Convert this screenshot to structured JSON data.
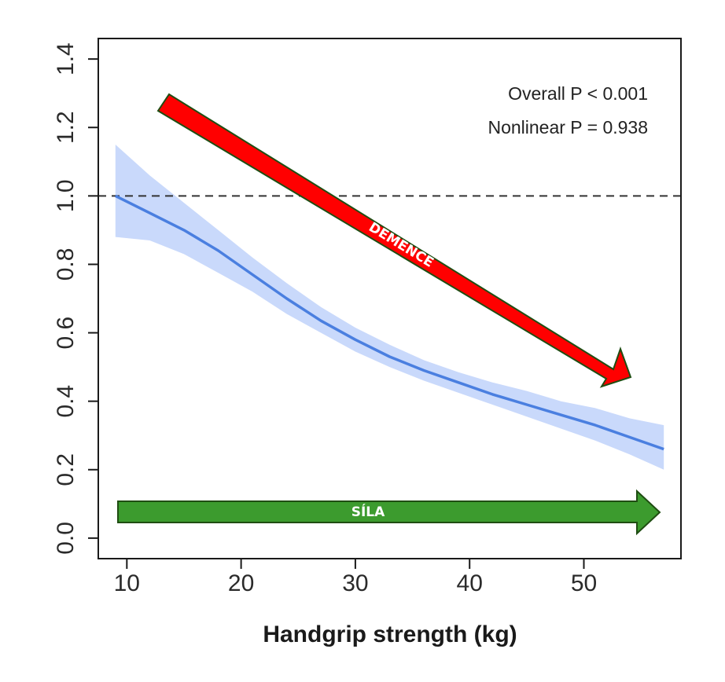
{
  "chart_data": {
    "type": "line",
    "title": "",
    "xlabel": "Handgrip strength (kg)",
    "ylabel": "",
    "xlim": [
      7.5,
      58.5
    ],
    "ylim": [
      -0.06,
      1.46
    ],
    "xticks": [
      10,
      20,
      30,
      40,
      50
    ],
    "xtick_labels": [
      "10",
      "20",
      "30",
      "40",
      "50"
    ],
    "yticks": [
      0.0,
      0.2,
      0.4,
      0.6,
      0.8,
      1.0,
      1.2,
      1.4
    ],
    "ytick_labels": [
      "0.0",
      "0.2",
      "0.4",
      "0.6",
      "0.8",
      "1.0",
      "1.2",
      "1.4"
    ],
    "reference_line": {
      "y": 1.0,
      "style": "dashed",
      "color": "#333333"
    },
    "series": [
      {
        "x": [
          9,
          12,
          15,
          18,
          21,
          24,
          27,
          30,
          33,
          36,
          39,
          42,
          45,
          48,
          51,
          54,
          57
        ],
        "y": [
          1.0,
          0.95,
          0.9,
          0.84,
          0.77,
          0.7,
          0.635,
          0.58,
          0.53,
          0.49,
          0.455,
          0.42,
          0.39,
          0.36,
          0.33,
          0.295,
          0.26
        ],
        "lower": [
          0.88,
          0.87,
          0.83,
          0.775,
          0.72,
          0.655,
          0.6,
          0.545,
          0.5,
          0.46,
          0.425,
          0.39,
          0.355,
          0.32,
          0.285,
          0.245,
          0.2
        ],
        "upper": [
          1.15,
          1.06,
          0.98,
          0.9,
          0.82,
          0.745,
          0.675,
          0.615,
          0.565,
          0.52,
          0.485,
          0.455,
          0.43,
          0.4,
          0.38,
          0.35,
          0.33
        ],
        "color": "#4a7fe0",
        "band_color": "#c9d9fb"
      }
    ],
    "annotations": {
      "overall_p": "Overall P < 0.001",
      "nonlinear_p": "Nonlinear P = 0.938",
      "red_arrow_label": "DEMENCE",
      "green_arrow_label": "SÍLA"
    },
    "colors": {
      "red_arrow": "#ff0000",
      "green_arrow": "#3c9b2e",
      "arrow_border": "#1f4d12"
    },
    "grid": false
  }
}
